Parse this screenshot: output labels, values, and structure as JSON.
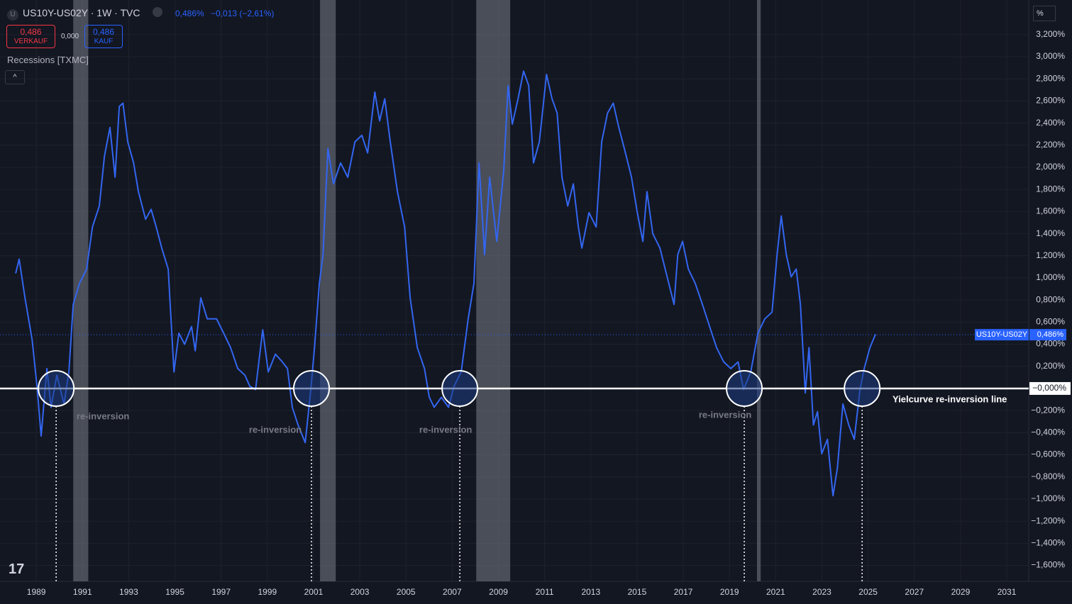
{
  "chart_data": {
    "type": "line",
    "title": "US10Y-US02Y · 1W · TVC",
    "quote": {
      "last": "0,486%",
      "change": "−0,013 (−2,61%)",
      "sell": "0,486",
      "sell_label": "VERKAUF",
      "spread": "0,000",
      "buy": "0,486",
      "buy_label": "KAUF"
    },
    "unit_button": "%",
    "recessions_label": "Recessions [TXMC]",
    "recessions": [
      {
        "start": 1990.6,
        "end": 1991.25
      },
      {
        "start": 2001.28,
        "end": 2001.96
      },
      {
        "start": 2008.04,
        "end": 2009.51
      },
      {
        "start": 2020.19,
        "end": 2020.35
      }
    ],
    "hline": {
      "value": 0,
      "label": "−0,000%",
      "text": "Yielcurve re-inversion line"
    },
    "annotations": [
      {
        "x": 1989.86,
        "label": "re-inversion"
      },
      {
        "x": 2000.91,
        "label": "re-inversion"
      },
      {
        "x": 2007.33,
        "label": "re-inversion"
      },
      {
        "x": 2019.64,
        "label": "re-inversion"
      },
      {
        "x": 2024.74
      }
    ],
    "last_label": {
      "name": "US10Y-US02Y",
      "value": 0.486,
      "label": "0,486%"
    },
    "x": [
      1988.11,
      1988.26,
      1988.51,
      1988.82,
      1989.03,
      1989.21,
      1989.46,
      1989.64,
      1989.89,
      1990.2,
      1990.41,
      1990.6,
      1990.87,
      1991.18,
      1991.43,
      1991.73,
      1991.95,
      1992.19,
      1992.41,
      1992.59,
      1992.75,
      1992.96,
      1993.21,
      1993.42,
      1993.73,
      1993.97,
      1994.19,
      1994.43,
      1994.71,
      1994.96,
      1995.17,
      1995.42,
      1995.72,
      1995.88,
      1996.12,
      1996.4,
      1996.8,
      1997.11,
      1997.41,
      1997.72,
      1998.03,
      1998.24,
      1998.49,
      1998.8,
      1999.04,
      1999.35,
      1999.65,
      1999.87,
      2000.08,
      2000.33,
      2000.64,
      2000.88,
      2001.04,
      2001.25,
      2001.41,
      2001.62,
      2001.86,
      2002.17,
      2002.48,
      2002.79,
      2003.09,
      2003.34,
      2003.65,
      2003.86,
      2004.08,
      2004.32,
      2004.63,
      2004.94,
      2005.18,
      2005.49,
      2005.8,
      2006.01,
      2006.22,
      2006.53,
      2006.84,
      2007.08,
      2007.39,
      2007.69,
      2007.94,
      2008.16,
      2008.4,
      2008.62,
      2008.93,
      2009.23,
      2009.42,
      2009.6,
      2009.85,
      2010.09,
      2010.31,
      2010.52,
      2010.77,
      2011.08,
      2011.32,
      2011.54,
      2011.75,
      2012.0,
      2012.24,
      2012.46,
      2012.61,
      2012.92,
      2013.23,
      2013.47,
      2013.72,
      2013.97,
      2014.21,
      2014.45,
      2014.76,
      2015.01,
      2015.25,
      2015.43,
      2015.68,
      2015.99,
      2016.3,
      2016.6,
      2016.76,
      2016.97,
      2017.22,
      2017.52,
      2017.83,
      2018.14,
      2018.44,
      2018.75,
      2019.06,
      2019.37,
      2019.61,
      2019.92,
      2020.23,
      2020.53,
      2020.84,
      2021.06,
      2021.24,
      2021.46,
      2021.67,
      2021.89,
      2022.07,
      2022.28,
      2022.44,
      2022.63,
      2022.81,
      2022.99,
      2023.24,
      2023.48,
      2023.67,
      2023.91,
      2024.16,
      2024.4,
      2024.65,
      2024.83,
      2025.08,
      2025.32
    ],
    "series": [
      {
        "name": "US10Y-US02Y",
        "color": "#3366f0",
        "values": [
          1.04,
          1.17,
          0.82,
          0.44,
          0.02,
          -0.43,
          0.18,
          -0.17,
          0.12,
          -0.14,
          0.15,
          0.76,
          0.95,
          1.08,
          1.46,
          1.65,
          2.1,
          2.36,
          1.91,
          2.55,
          2.58,
          2.23,
          2.04,
          1.78,
          1.53,
          1.62,
          1.46,
          1.27,
          1.08,
          0.15,
          0.5,
          0.4,
          0.56,
          0.34,
          0.82,
          0.63,
          0.63,
          0.5,
          0.37,
          0.18,
          0.12,
          0.02,
          -0.01,
          0.53,
          0.15,
          0.31,
          0.24,
          0.18,
          -0.17,
          -0.33,
          -0.49,
          -0.01,
          0.37,
          0.95,
          1.21,
          2.17,
          1.85,
          2.04,
          1.91,
          2.23,
          2.29,
          2.13,
          2.68,
          2.42,
          2.62,
          2.23,
          1.78,
          1.46,
          0.82,
          0.37,
          0.18,
          -0.08,
          -0.17,
          -0.08,
          -0.17,
          0.02,
          0.15,
          0.63,
          0.95,
          2.04,
          1.21,
          1.91,
          1.33,
          1.97,
          2.74,
          2.39,
          2.62,
          2.87,
          2.74,
          2.04,
          2.23,
          2.84,
          2.62,
          2.49,
          1.91,
          1.65,
          1.85,
          1.46,
          1.27,
          1.59,
          1.46,
          2.23,
          2.49,
          2.58,
          2.36,
          2.17,
          1.91,
          1.59,
          1.33,
          1.78,
          1.4,
          1.27,
          1.01,
          0.76,
          1.21,
          1.33,
          1.08,
          0.95,
          0.76,
          0.56,
          0.37,
          0.24,
          0.18,
          0.24,
          -0.01,
          0.15,
          0.5,
          0.63,
          0.69,
          1.21,
          1.56,
          1.21,
          1.01,
          1.08,
          0.76,
          -0.04,
          0.37,
          -0.33,
          -0.21,
          -0.59,
          -0.46,
          -0.97,
          -0.72,
          -0.14,
          -0.33,
          -0.46,
          -0.01,
          0.18,
          0.37,
          0.49
        ]
      }
    ],
    "xlim": [
      1987.43,
      2031.95
    ],
    "xticks": [
      1989,
      1991,
      1993,
      1995,
      1997,
      1999,
      2001,
      2003,
      2005,
      2007,
      2009,
      2011,
      2013,
      2015,
      2017,
      2019,
      2021,
      2023,
      2025,
      2027,
      2029,
      2031
    ],
    "ylim": [
      -1.744,
      3.513
    ],
    "yticks": [
      {
        "value": 3.2,
        "label": "3,200%"
      },
      {
        "value": 3.0,
        "label": "3,000%"
      },
      {
        "value": 2.8,
        "label": "2,800%"
      },
      {
        "value": 2.6,
        "label": "2,600%"
      },
      {
        "value": 2.4,
        "label": "2,400%"
      },
      {
        "value": 2.2,
        "label": "2,200%"
      },
      {
        "value": 2.0,
        "label": "2,000%"
      },
      {
        "value": 1.8,
        "label": "1,800%"
      },
      {
        "value": 1.6,
        "label": "1,600%"
      },
      {
        "value": 1.4,
        "label": "1,400%"
      },
      {
        "value": 1.2,
        "label": "1,200%"
      },
      {
        "value": 1.0,
        "label": "1,000%"
      },
      {
        "value": 0.8,
        "label": "0,800%"
      },
      {
        "value": 0.6,
        "label": "0,600%"
      },
      {
        "value": 0.4,
        "label": "0,400%"
      },
      {
        "value": 0.2,
        "label": "0,200%"
      },
      {
        "value": -0.2,
        "label": "−0,200%"
      },
      {
        "value": -0.4,
        "label": "−0,400%"
      },
      {
        "value": -0.6,
        "label": "−0,600%"
      },
      {
        "value": -0.8,
        "label": "−0,800%"
      },
      {
        "value": -1.0,
        "label": "−1,000%"
      },
      {
        "value": -1.2,
        "label": "−1,200%"
      },
      {
        "value": -1.4,
        "label": "−1,400%"
      },
      {
        "value": -1.6,
        "label": "−1,600%"
      }
    ],
    "grid": true
  }
}
